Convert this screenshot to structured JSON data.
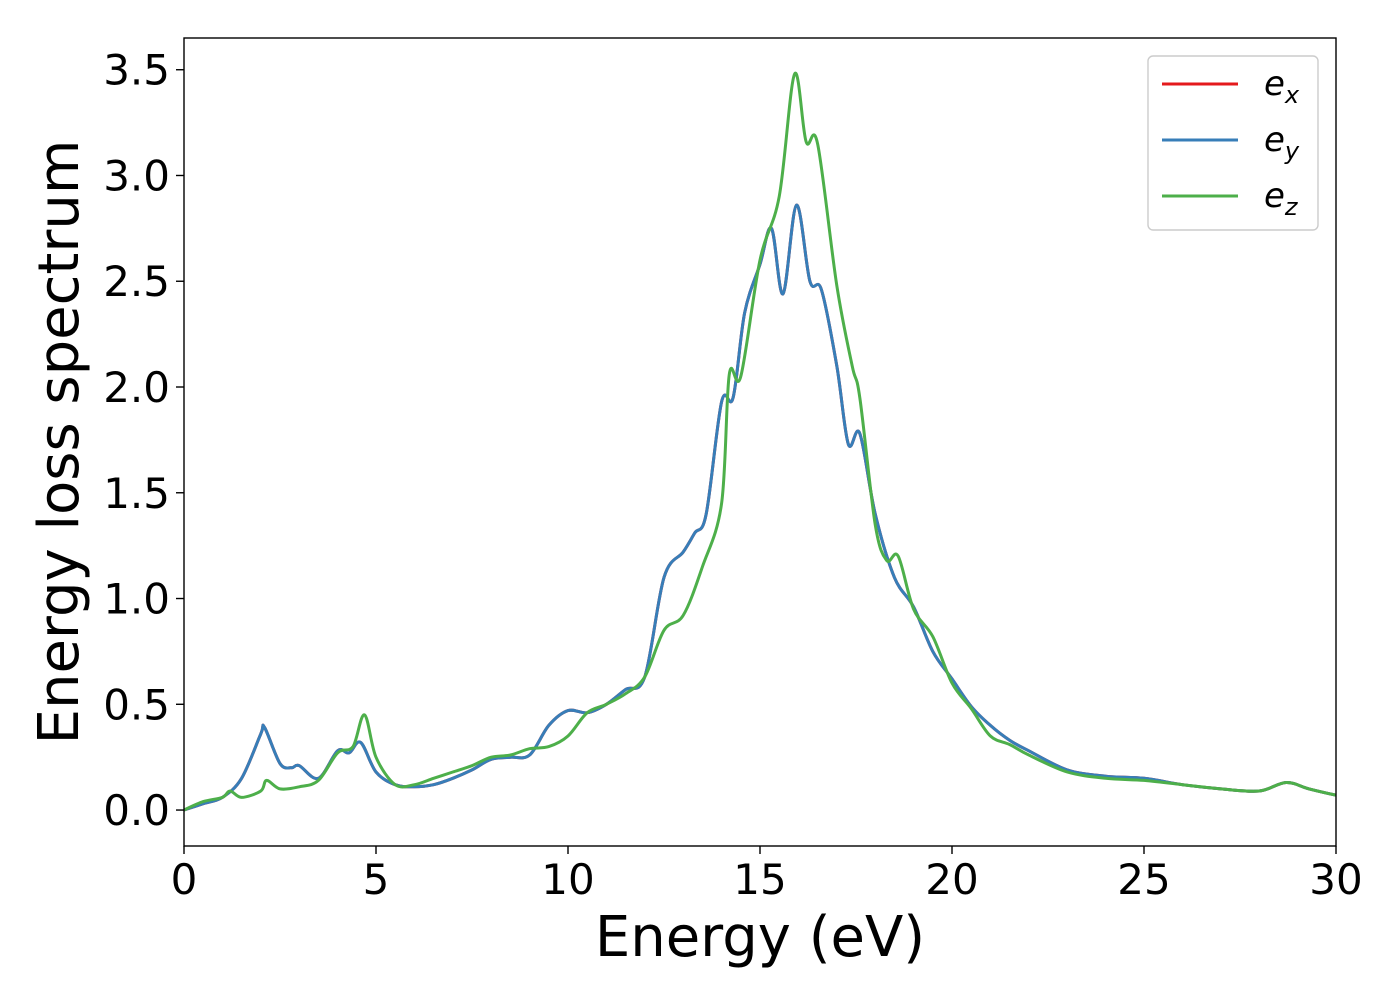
{
  "chart_data": {
    "type": "line",
    "title": "",
    "xlabel": "Energy (eV)",
    "ylabel": "Energy loss spectrum",
    "xlim": [
      0,
      30
    ],
    "ylim": [
      -0.17,
      3.65
    ],
    "xticks": [
      0,
      5,
      10,
      15,
      20,
      25,
      30
    ],
    "xtick_labels": [
      "0",
      "5",
      "10",
      "15",
      "20",
      "25",
      "30"
    ],
    "yticks": [
      0.0,
      0.5,
      1.0,
      1.5,
      2.0,
      2.5,
      3.0,
      3.5
    ],
    "ytick_labels": [
      "0.0",
      "0.5",
      "1.0",
      "1.5",
      "2.0",
      "2.5",
      "3.0",
      "3.5"
    ],
    "grid": false,
    "legend_position": "top-right",
    "series": [
      {
        "name": "e",
        "subscript": "x",
        "color": "#e41a1c",
        "x": [
          0,
          0.5,
          1.0,
          1.5,
          2.0,
          2.1,
          2.5,
          2.8,
          3.0,
          3.5,
          4.0,
          4.3,
          4.6,
          5.0,
          5.5,
          6.0,
          6.5,
          7.0,
          7.5,
          8.0,
          8.5,
          9.0,
          9.5,
          10.0,
          10.5,
          11.0,
          11.5,
          12.0,
          12.5,
          13.0,
          13.3,
          13.6,
          14.0,
          14.3,
          14.6,
          15.0,
          15.3,
          15.6,
          15.95,
          16.3,
          16.6,
          17.0,
          17.3,
          17.6,
          18.0,
          18.5,
          19.0,
          19.5,
          20.0,
          20.5,
          21.0,
          21.5,
          22.0,
          23.0,
          24.0,
          25.0,
          26.0,
          27.0,
          28.0,
          28.7,
          29.3,
          30.0
        ],
        "y": [
          0.0,
          0.03,
          0.06,
          0.15,
          0.36,
          0.39,
          0.22,
          0.2,
          0.21,
          0.15,
          0.28,
          0.27,
          0.32,
          0.18,
          0.12,
          0.11,
          0.12,
          0.15,
          0.19,
          0.24,
          0.25,
          0.26,
          0.4,
          0.47,
          0.46,
          0.5,
          0.57,
          0.63,
          1.1,
          1.22,
          1.31,
          1.4,
          1.93,
          1.95,
          2.35,
          2.58,
          2.75,
          2.44,
          2.86,
          2.5,
          2.46,
          2.1,
          1.73,
          1.78,
          1.4,
          1.1,
          0.96,
          0.75,
          0.62,
          0.49,
          0.4,
          0.33,
          0.28,
          0.19,
          0.16,
          0.15,
          0.12,
          0.1,
          0.09,
          0.13,
          0.1,
          0.07
        ]
      },
      {
        "name": "e",
        "subscript": "y",
        "color": "#377eb8",
        "x": [
          0,
          0.5,
          1.0,
          1.5,
          2.0,
          2.1,
          2.5,
          2.8,
          3.0,
          3.5,
          4.0,
          4.3,
          4.6,
          5.0,
          5.5,
          6.0,
          6.5,
          7.0,
          7.5,
          8.0,
          8.5,
          9.0,
          9.5,
          10.0,
          10.5,
          11.0,
          11.5,
          12.0,
          12.5,
          13.0,
          13.3,
          13.6,
          14.0,
          14.3,
          14.6,
          15.0,
          15.3,
          15.6,
          15.95,
          16.3,
          16.6,
          17.0,
          17.3,
          17.6,
          18.0,
          18.5,
          19.0,
          19.5,
          20.0,
          20.5,
          21.0,
          21.5,
          22.0,
          23.0,
          24.0,
          25.0,
          26.0,
          27.0,
          28.0,
          28.7,
          29.3,
          30.0
        ],
        "y": [
          0.0,
          0.03,
          0.06,
          0.15,
          0.36,
          0.39,
          0.22,
          0.2,
          0.21,
          0.15,
          0.28,
          0.27,
          0.32,
          0.18,
          0.12,
          0.11,
          0.12,
          0.15,
          0.19,
          0.24,
          0.25,
          0.26,
          0.4,
          0.47,
          0.46,
          0.5,
          0.57,
          0.63,
          1.1,
          1.22,
          1.31,
          1.4,
          1.93,
          1.95,
          2.35,
          2.58,
          2.75,
          2.44,
          2.86,
          2.5,
          2.46,
          2.1,
          1.73,
          1.78,
          1.4,
          1.1,
          0.96,
          0.75,
          0.62,
          0.49,
          0.4,
          0.33,
          0.28,
          0.19,
          0.16,
          0.15,
          0.12,
          0.1,
          0.09,
          0.13,
          0.1,
          0.07
        ]
      },
      {
        "name": "e",
        "subscript": "z",
        "color": "#4daf4a",
        "x": [
          0,
          0.5,
          1.0,
          1.2,
          1.5,
          2.0,
          2.15,
          2.5,
          3.0,
          3.5,
          4.0,
          4.4,
          4.7,
          5.0,
          5.5,
          6.0,
          6.5,
          7.0,
          7.5,
          8.0,
          8.5,
          9.0,
          9.5,
          10.0,
          10.5,
          11.0,
          11.5,
          12.0,
          12.5,
          13.0,
          13.5,
          14.0,
          14.2,
          14.5,
          15.0,
          15.5,
          15.9,
          16.2,
          16.5,
          17.0,
          17.4,
          17.6,
          18.0,
          18.3,
          18.6,
          19.0,
          19.5,
          20.0,
          20.5,
          21.0,
          21.5,
          22.0,
          23.0,
          24.0,
          25.0,
          26.0,
          27.0,
          28.0,
          28.7,
          29.3,
          30.0
        ],
        "y": [
          0.0,
          0.04,
          0.06,
          0.09,
          0.06,
          0.09,
          0.14,
          0.1,
          0.11,
          0.14,
          0.27,
          0.3,
          0.45,
          0.25,
          0.12,
          0.12,
          0.15,
          0.18,
          0.21,
          0.25,
          0.26,
          0.29,
          0.3,
          0.35,
          0.46,
          0.5,
          0.55,
          0.63,
          0.85,
          0.92,
          1.15,
          1.45,
          2.06,
          2.05,
          2.6,
          2.9,
          3.48,
          3.16,
          3.15,
          2.48,
          2.1,
          1.95,
          1.35,
          1.18,
          1.2,
          0.95,
          0.82,
          0.6,
          0.48,
          0.35,
          0.31,
          0.26,
          0.18,
          0.15,
          0.14,
          0.12,
          0.1,
          0.09,
          0.13,
          0.1,
          0.07
        ]
      }
    ]
  }
}
